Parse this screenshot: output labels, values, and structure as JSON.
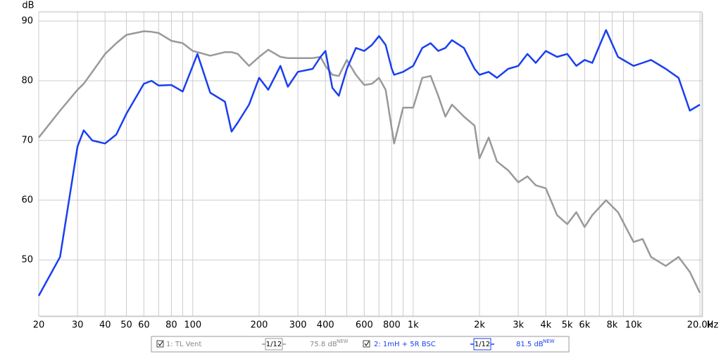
{
  "chart_data": {
    "type": "line",
    "y_label": "dB",
    "x_label": "Hz",
    "xscale": "log",
    "grid": true,
    "xlim": [
      20,
      20000
    ],
    "ylim": [
      40.6,
      91.5
    ],
    "yticks": [
      50,
      60,
      70,
      80,
      90
    ],
    "xticks": [
      20,
      30,
      40,
      50,
      60,
      80,
      100,
      200,
      300,
      400,
      600,
      800,
      {
        "value": 1000,
        "label": "1k"
      },
      {
        "value": 2000,
        "label": "2k"
      },
      {
        "value": 3000,
        "label": "3k"
      },
      {
        "value": 4000,
        "label": "4k"
      },
      {
        "value": 5000,
        "label": "5k"
      },
      {
        "value": 6000,
        "label": "6k"
      },
      {
        "value": 8000,
        "label": "8k"
      },
      {
        "value": 10000,
        "label": "10k"
      },
      {
        "value": 20000,
        "label": "20.0k"
      }
    ],
    "xminor": [
      70,
      90,
      500,
      700,
      900,
      7000,
      9000
    ],
    "x": [
      20,
      25,
      30,
      32,
      35,
      40,
      45,
      50,
      60,
      65,
      70,
      80,
      90,
      100,
      105,
      120,
      140,
      150,
      160,
      180,
      200,
      220,
      250,
      270,
      300,
      350,
      380,
      400,
      430,
      460,
      500,
      550,
      600,
      650,
      700,
      750,
      800,
      820,
      900,
      1000,
      1100,
      1200,
      1300,
      1400,
      1500,
      1700,
      1900,
      2000,
      2200,
      2400,
      2700,
      3000,
      3300,
      3600,
      4000,
      4500,
      5000,
      5500,
      6000,
      6500,
      7500,
      8500,
      10000,
      11000,
      12000,
      14000,
      16000,
      18000,
      20000
    ],
    "series": [
      {
        "name": "1: TL Vent",
        "color": "#999999",
        "smoothing": "1/12",
        "level": "75.8 dB",
        "level_tag": "NEW",
        "values": [
          70.5,
          75,
          78.5,
          79.5,
          81.5,
          84.5,
          86.3,
          87.7,
          88.3,
          88.2,
          88,
          86.7,
          86.3,
          85,
          84.8,
          84.2,
          84.8,
          84.8,
          84.5,
          82.5,
          84,
          85.2,
          84,
          83.8,
          83.8,
          83.8,
          84,
          82.5,
          81,
          80.8,
          83.5,
          81,
          79.3,
          79.5,
          80.5,
          78.5,
          72,
          69.5,
          75.5,
          75.5,
          80.5,
          80.8,
          77.5,
          74,
          76,
          74,
          72.5,
          67,
          70.5,
          66.5,
          65,
          63,
          64,
          62.5,
          62,
          57.5,
          56,
          58,
          55.5,
          57.5,
          60,
          58,
          53,
          53.5,
          50.5,
          49,
          50.5,
          48,
          44.5
        ]
      },
      {
        "name": "2: 1mH + 5R BSC",
        "color": "#1a3ff0",
        "smoothing": "1/12",
        "level": "81.5 dB",
        "level_tag": "NEW",
        "values": [
          44,
          50.5,
          69,
          71.7,
          70,
          69.5,
          71,
          74.5,
          79.5,
          80,
          79.2,
          79.3,
          78.2,
          82.5,
          84.5,
          78,
          76.5,
          71.5,
          73,
          76,
          80.5,
          78.5,
          82.5,
          79,
          81.5,
          82,
          84,
          85,
          78.8,
          77.5,
          82,
          85.5,
          85,
          86,
          87.5,
          86,
          82,
          81,
          81.5,
          82.5,
          85.5,
          86.3,
          85,
          85.5,
          86.8,
          85.5,
          82,
          81,
          81.5,
          80.5,
          82,
          82.5,
          84.5,
          83,
          85,
          84,
          84.5,
          82.5,
          83.5,
          83,
          88.5,
          84,
          82.5,
          83,
          83.5,
          82,
          80.5,
          75,
          76
        ]
      }
    ]
  }
}
